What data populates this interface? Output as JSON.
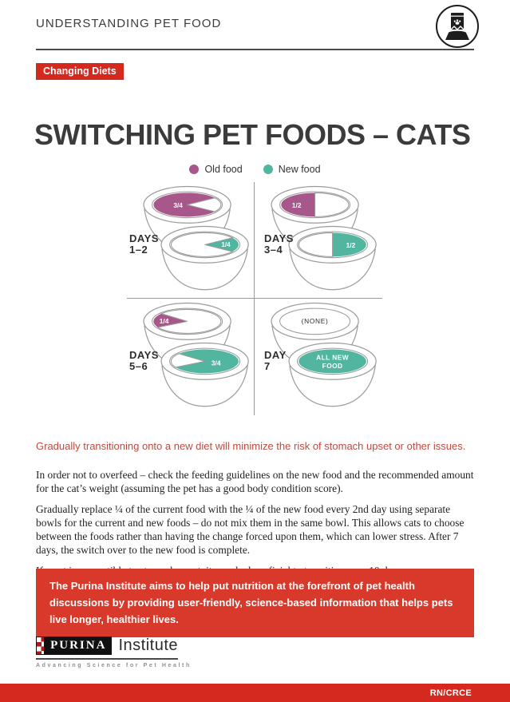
{
  "header": {
    "title": "UNDERSTANDING PET FOOD",
    "icon": "pet-food-bag-and-bowl"
  },
  "badge": {
    "label": "Changing Diets"
  },
  "title": "SWITCHING PET FOODS – CATS",
  "legend": {
    "items": [
      {
        "label": "Old food",
        "color": "#a75789"
      },
      {
        "label": "New food",
        "color": "#52b5a0"
      }
    ]
  },
  "diagram": {
    "quadrants": [
      {
        "label_line1": "DAYS",
        "label_line2": "1–2",
        "top_bowl": {
          "food": "old",
          "portion_label": "3/4",
          "fraction": 0.75
        },
        "bottom_bowl": {
          "food": "new",
          "portion_label": "1/4",
          "fraction": 0.25
        }
      },
      {
        "label_line1": "DAYS",
        "label_line2": "3–4",
        "top_bowl": {
          "food": "old",
          "portion_label": "1/2",
          "fraction": 0.5
        },
        "bottom_bowl": {
          "food": "new",
          "portion_label": "1/2",
          "fraction": 0.5
        }
      },
      {
        "label_line1": "DAYS",
        "label_line2": "5–6",
        "top_bowl": {
          "food": "old",
          "portion_label": "1/4",
          "fraction": 0.25
        },
        "bottom_bowl": {
          "food": "new",
          "portion_label": "3/4",
          "fraction": 0.75
        }
      },
      {
        "label_line1": "DAY",
        "label_line2": "7",
        "top_bowl": {
          "food": "none",
          "portion_label": "(NONE)",
          "fraction": 0
        },
        "bottom_bowl": {
          "food": "new",
          "portion_label": "ALL NEW FOOD",
          "fraction": 1
        }
      }
    ]
  },
  "intro": "Gradually transitioning onto a new diet will minimize the risk of stomach upset or other issues.",
  "paragraphs": [
    "In order not to overfeed – check the feeding guidelines on the new food and the recommended amount for the cat’s weight (assuming the pet has a good body condition score).",
    "Gradually replace ¼ of the current food with the ¼ of the new food every 2nd day using separate bowls for the current and new foods – do not mix them in the same bowl. This allows cats to choose between the foods rather than having the change forced upon them, which can lower stress. After 7 days, the switch over to the new food is complete.",
    "If a pet is susceptible to stomach upset, it may be beneficial to transition over 10 days."
  ],
  "callout": "The Purina Institute aims to help put nutrition at the forefront of pet health discussions by providing user-friendly, science-based information that helps pets live longer, healthier lives.",
  "logo": {
    "brand": "PURINA",
    "name": "Institute",
    "tagline": "Advancing Science for Pet Health"
  },
  "footer": {
    "code": "RN/CRCE"
  },
  "colors": {
    "accent_red": "#d5281e",
    "callout_red": "#d8392b",
    "intro_red": "#bf4a40",
    "old_food": "#a75789",
    "new_food": "#52b5a0",
    "bowl_stroke": "#9b9b9b"
  }
}
